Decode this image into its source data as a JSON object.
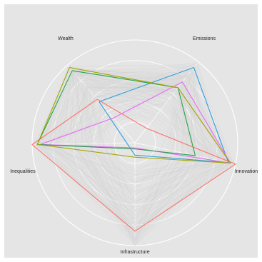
{
  "chart_data": {
    "type": "radar",
    "axes": [
      "Emissions",
      "Innovation",
      "Infrastructure",
      "Inequalities",
      "Wealth"
    ],
    "scale": [
      0,
      1
    ],
    "grid": true,
    "grid_levels": [
      0.2,
      0.4,
      0.6,
      0.8,
      1.0
    ],
    "colors": {
      "panel_background": "#e5e5e5",
      "grid": "#ffffff",
      "background_lines": "#d2d2d2"
    },
    "series": [
      {
        "color": "#f8766d",
        "values": [
          0.18,
          1.0,
          0.86,
          1.0,
          0.56
        ]
      },
      {
        "color": "#2e9fdf",
        "values": [
          0.93,
          0.93,
          0.12,
          0.08,
          0.53
        ]
      },
      {
        "color": "#e76bf3",
        "values": [
          0.75,
          0.95,
          0.05,
          0.92,
          0.32
        ]
      },
      {
        "color": "#22a34a",
        "values": [
          0.68,
          0.6,
          0.06,
          0.95,
          0.93
        ]
      },
      {
        "color": "#a3a500",
        "values": [
          0.68,
          0.95,
          0.14,
          0.95,
          0.97
        ]
      }
    ],
    "background_series_count": 150
  }
}
